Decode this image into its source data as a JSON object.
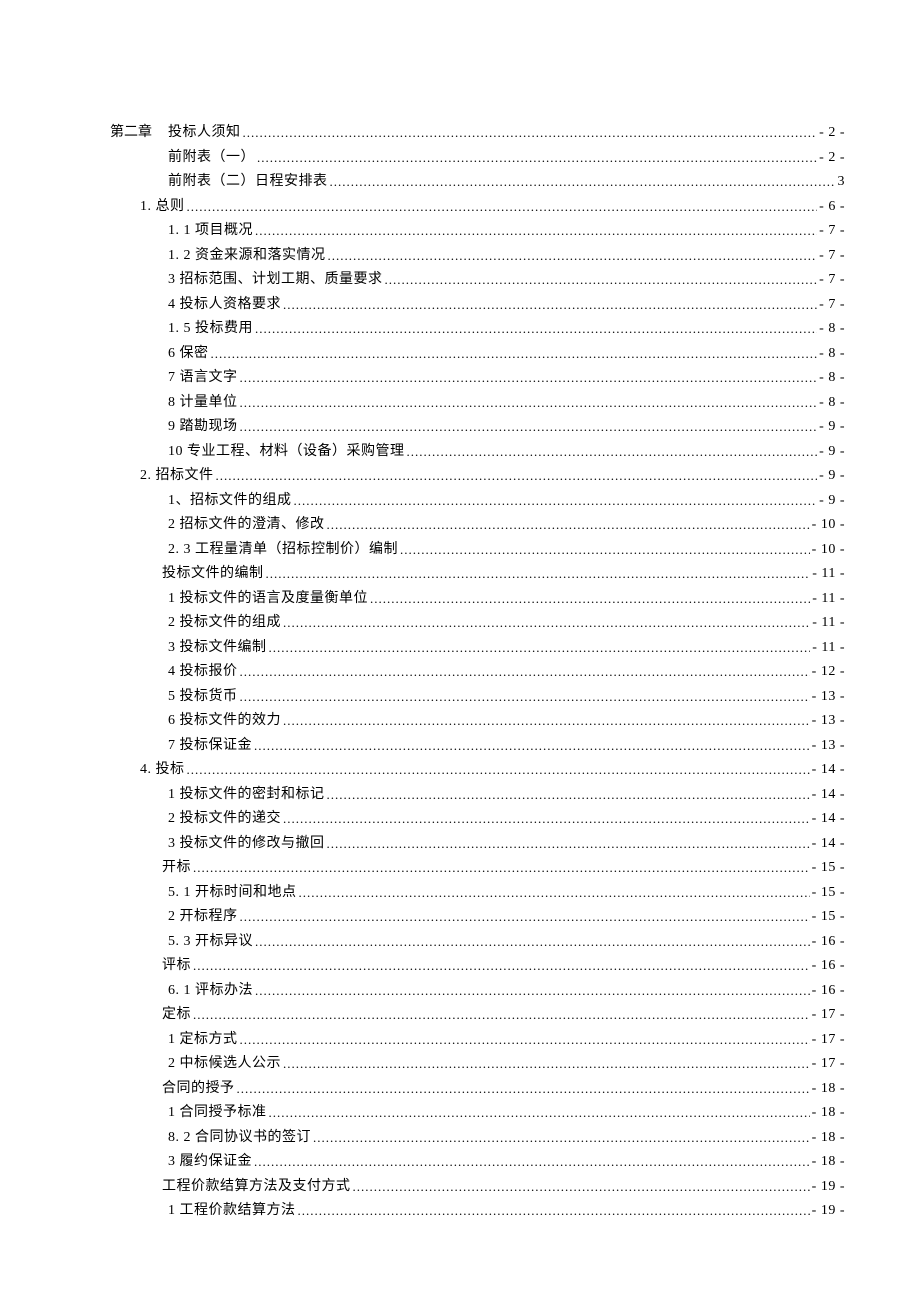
{
  "toc": {
    "chapter_prefix": "第二章",
    "entries": [
      {
        "indent": "indent-2b",
        "label": "投标人须知",
        "page": "- 2 -",
        "prefix": "第二章"
      },
      {
        "indent": "indent-2b",
        "label": "前附表（一）",
        "page": "- 2 -"
      },
      {
        "indent": "indent-2b",
        "label": "前附表（二）日程安排表",
        "page": "3"
      },
      {
        "indent": "indent-1",
        "label": "1. 总则",
        "page": "- 6 -"
      },
      {
        "indent": "indent-2b",
        "label": "1. 1 项目概况",
        "page": "- 7 -"
      },
      {
        "indent": "indent-2b",
        "label": "1. 2 资金来源和落实情况",
        "page": "- 7 -"
      },
      {
        "indent": "indent-2b",
        "label": "3 招标范围、计划工期、质量要求",
        "page": "- 7 -"
      },
      {
        "indent": "indent-2b",
        "label": "4 投标人资格要求",
        "page": "- 7 -"
      },
      {
        "indent": "indent-2b",
        "label": "1. 5 投标费用",
        "page": "- 8 -"
      },
      {
        "indent": "indent-2b",
        "label": "6 保密",
        "page": "- 8 -"
      },
      {
        "indent": "indent-2b",
        "label": "7 语言文字",
        "page": "- 8 -"
      },
      {
        "indent": "indent-2b",
        "label": "8  计量单位",
        "page": "- 8 -"
      },
      {
        "indent": "indent-2b",
        "label": "9 踏勘现场",
        "page": "- 9 -"
      },
      {
        "indent": "indent-2b",
        "label": "10 专业工程、材料（设备）采购管理",
        "page": "- 9 -"
      },
      {
        "indent": "indent-1",
        "label": "2. 招标文件",
        "page": "- 9 -"
      },
      {
        "indent": "indent-2b",
        "label": "1、招标文件的组成",
        "page": "- 9 -"
      },
      {
        "indent": "indent-2b",
        "label": "2 招标文件的澄清、修改",
        "page": "- 10 -"
      },
      {
        "indent": "indent-2b",
        "label": "2. 3 工程量清单（招标控制价）编制",
        "page": "- 10 -"
      },
      {
        "indent": "indent-2",
        "label": "投标文件的编制",
        "page": "- 11 -"
      },
      {
        "indent": "indent-2b",
        "label": "1 投标文件的语言及度量衡单位",
        "page": "- 11 -"
      },
      {
        "indent": "indent-2b",
        "label": "2 投标文件的组成",
        "page": "- 11 -"
      },
      {
        "indent": "indent-2b",
        "label": "3 投标文件编制",
        "page": "- 11 -"
      },
      {
        "indent": "indent-2b",
        "label": "4 投标报价",
        "page": "- 12 -"
      },
      {
        "indent": "indent-2b",
        "label": "5 投标货币",
        "page": "- 13 -"
      },
      {
        "indent": "indent-2b",
        "label": "6 投标文件的效力",
        "page": "- 13 -"
      },
      {
        "indent": "indent-2b",
        "label": "7 投标保证金",
        "page": "- 13 -"
      },
      {
        "indent": "indent-1",
        "label": "4. 投标",
        "page": "- 14 -"
      },
      {
        "indent": "indent-2b",
        "label": "1 投标文件的密封和标记",
        "page": "- 14 -"
      },
      {
        "indent": "indent-2b",
        "label": "2 投标文件的递交",
        "page": "- 14 -"
      },
      {
        "indent": "indent-2b",
        "label": "3 投标文件的修改与撤回",
        "page": "- 14 -"
      },
      {
        "indent": "indent-2",
        "label": "开标",
        "page": "- 15 -"
      },
      {
        "indent": "indent-2b",
        "label": "5. 1 开标时间和地点",
        "page": "- 15 -"
      },
      {
        "indent": "indent-2b",
        "label": "2 开标程序",
        "page": "- 15 -"
      },
      {
        "indent": "indent-2b",
        "label": "5. 3 开标异议",
        "page": "- 16 -"
      },
      {
        "indent": "indent-2",
        "label": "评标",
        "page": "- 16 -"
      },
      {
        "indent": "indent-2b",
        "label": "6. 1 评标办法",
        "page": "- 16 -"
      },
      {
        "indent": "indent-2",
        "label": "定标",
        "page": "- 17 -"
      },
      {
        "indent": "indent-2b",
        "label": "1 定标方式",
        "page": "- 17 -"
      },
      {
        "indent": "indent-2b",
        "label": "2 中标候选人公示",
        "page": "- 17 -"
      },
      {
        "indent": "indent-2",
        "label": "合同的授予",
        "page": "- 18 -"
      },
      {
        "indent": "indent-2b",
        "label": "1 合同授予标准",
        "page": "- 18 -"
      },
      {
        "indent": "indent-2b",
        "label": "8. 2 合同协议书的签订",
        "page": "- 18 -"
      },
      {
        "indent": "indent-2b",
        "label": "3 履约保证金",
        "page": "- 18 -"
      },
      {
        "indent": "indent-2",
        "label": "工程价款结算方法及支付方式",
        "page": "- 19 -"
      },
      {
        "indent": "indent-2b",
        "label": "1 工程价款结算方法",
        "page": "- 19 -"
      }
    ]
  }
}
